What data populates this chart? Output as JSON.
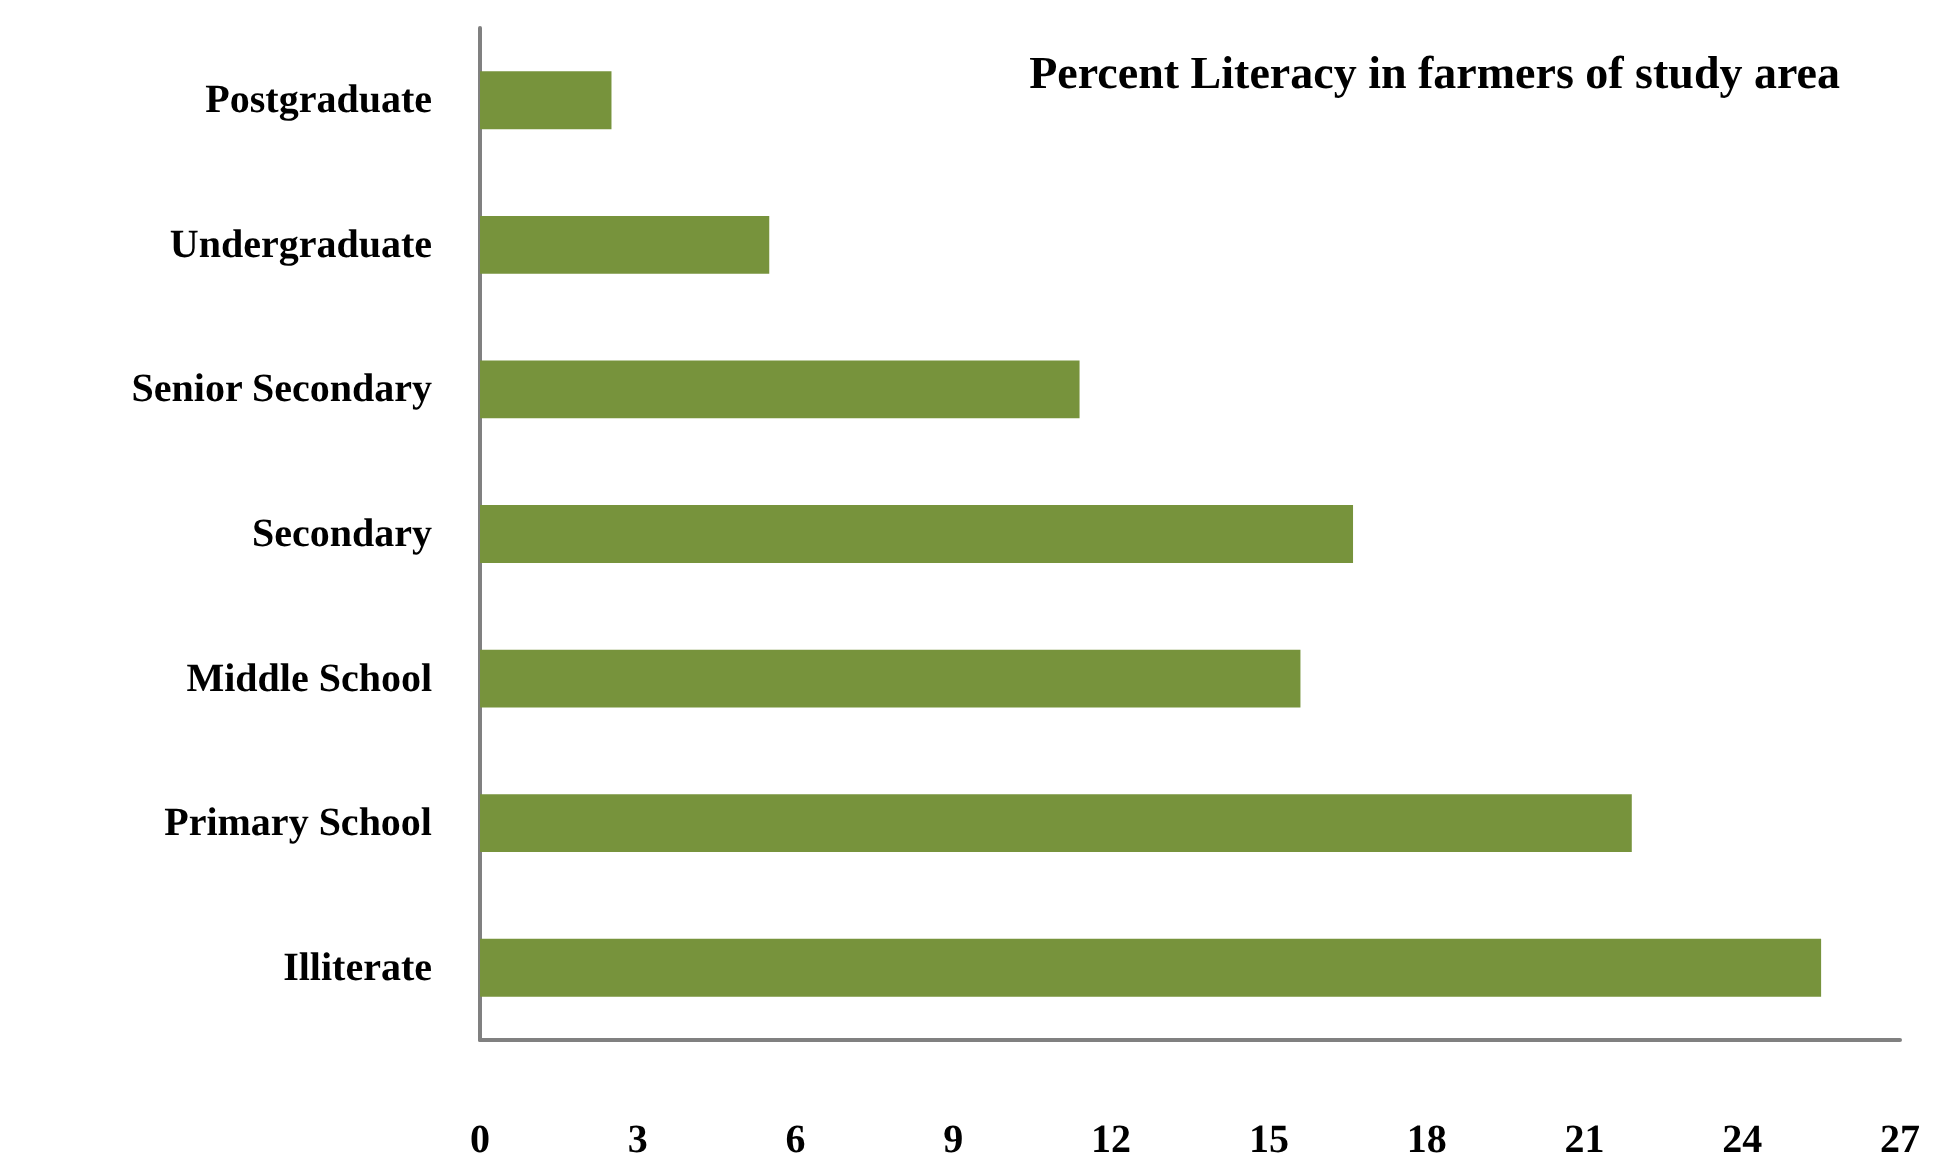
{
  "chart_data": {
    "type": "bar",
    "orientation": "horizontal",
    "title": "Percent Literacy in farmers of study area",
    "categories": [
      "Postgraduate",
      "Undergraduate",
      "Senior Secondary",
      "Secondary",
      "Middle School",
      "Primary School",
      "Illiterate"
    ],
    "values": [
      2.5,
      5.5,
      11.4,
      16.6,
      15.6,
      21.9,
      25.5
    ],
    "color": "#77933c",
    "xlim": [
      0,
      27
    ],
    "xticks": [
      0,
      3,
      6,
      9,
      12,
      15,
      18,
      21,
      24,
      27
    ],
    "grid": false
  }
}
